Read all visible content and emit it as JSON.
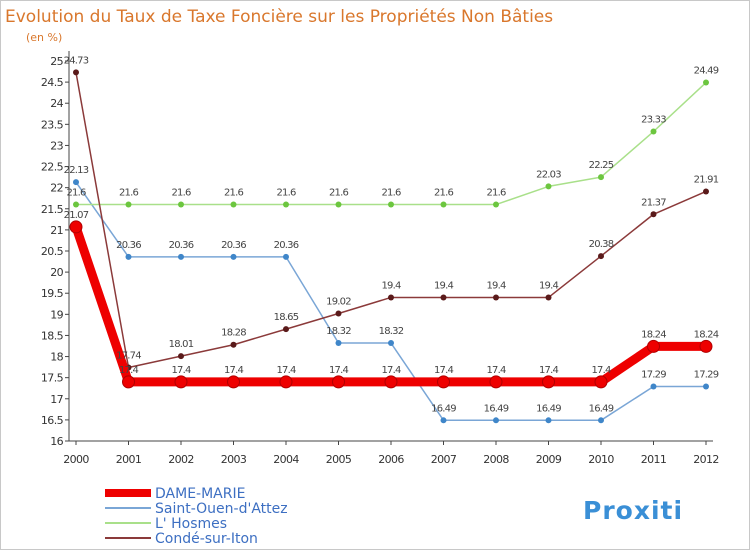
{
  "chart_data": {
    "type": "line",
    "title": "Evolution du Taux de Taxe Foncière sur les Propriétés Non Bâties",
    "subtitle": "(en %)",
    "x": [
      "2000",
      "2001",
      "2002",
      "2003",
      "2004",
      "2005",
      "2006",
      "2007",
      "2008",
      "2009",
      "2010",
      "2011",
      "2012"
    ],
    "ylim": [
      16,
      25
    ],
    "yticks": [
      "16",
      "16.5",
      "17",
      "17.5",
      "18",
      "18.5",
      "19",
      "19.5",
      "20",
      "20.5",
      "21",
      "21.5",
      "22",
      "22.5",
      "23",
      "23.5",
      "24",
      "24.5",
      "25"
    ],
    "grid": false,
    "legend_position": "bottom-left",
    "series": [
      {
        "name": "DAME-MARIE",
        "color": "#ee0000",
        "marker_color": "#ee0000",
        "emphasis": true,
        "values": [
          21.07,
          17.4,
          17.4,
          17.4,
          17.4,
          17.4,
          17.4,
          17.4,
          17.4,
          17.4,
          17.4,
          18.24,
          18.24
        ],
        "labels": [
          "21.07",
          "17.4",
          "17.4",
          "17.4",
          "17.4",
          "17.4",
          "17.4",
          "17.4",
          "17.4",
          "17.4",
          "17.4",
          "18.24",
          "18.24"
        ]
      },
      {
        "name": "Saint-Ouen-d'Attez",
        "color": "#7aa6d6",
        "marker_color": "#3f86c9",
        "emphasis": false,
        "values": [
          22.13,
          20.36,
          20.36,
          20.36,
          20.36,
          18.32,
          18.32,
          16.49,
          16.49,
          16.49,
          16.49,
          17.29,
          17.29
        ],
        "labels": [
          "22.13",
          "20.36",
          "20.36",
          "20.36",
          "20.36",
          "18.32",
          "18.32",
          "16.49",
          "16.49",
          "16.49",
          "16.49",
          "17.29",
          "17.29"
        ]
      },
      {
        "name": "L' Hosmes",
        "color": "#a9e08a",
        "marker_color": "#6cc63f",
        "emphasis": false,
        "values": [
          21.6,
          21.6,
          21.6,
          21.6,
          21.6,
          21.6,
          21.6,
          21.6,
          21.6,
          22.03,
          22.25,
          23.33,
          24.49
        ],
        "labels": [
          "21.6",
          "21.6",
          "21.6",
          "21.6",
          "21.6",
          "21.6",
          "21.6",
          "21.6",
          "21.6",
          "22.03",
          "22.25",
          "23.33",
          "24.49"
        ]
      },
      {
        "name": "Condé-sur-Iton",
        "color": "#8b3a3a",
        "marker_color": "#5a1a1a",
        "emphasis": false,
        "values": [
          24.73,
          17.74,
          18.01,
          18.28,
          18.65,
          19.02,
          19.4,
          19.4,
          19.4,
          19.4,
          20.38,
          21.37,
          21.91
        ],
        "labels": [
          "24.73",
          "17.74",
          "18.01",
          "18.28",
          "18.65",
          "19.02",
          "19.4",
          "19.4",
          "19.4",
          "19.4",
          "20.38",
          "21.37",
          "21.91"
        ]
      }
    ]
  },
  "brand": {
    "logo_text": "Proxiti"
  }
}
